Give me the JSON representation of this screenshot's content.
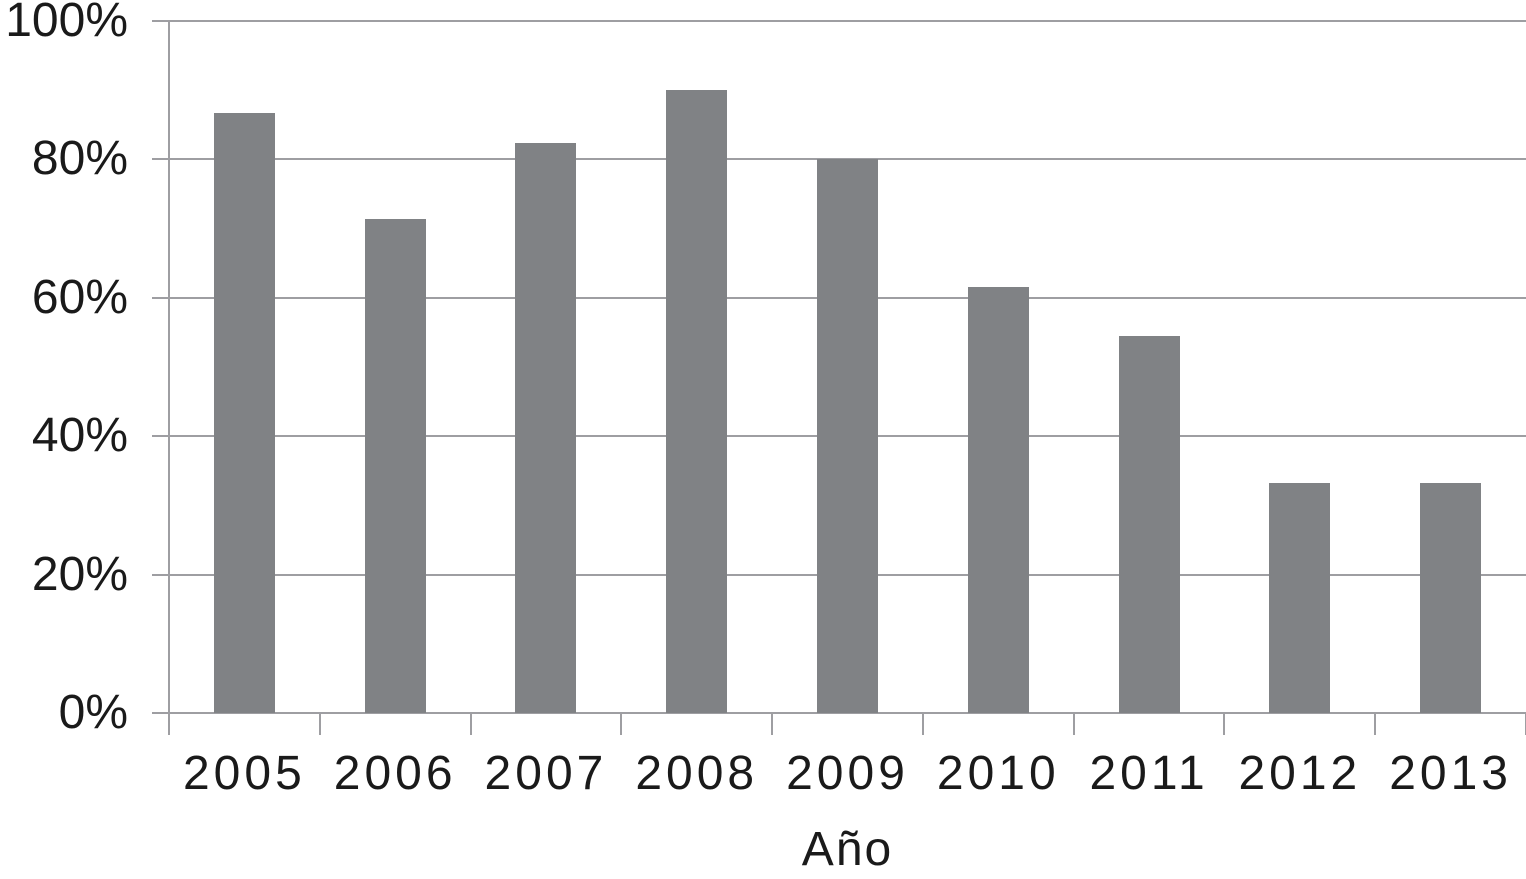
{
  "chart_data": {
    "type": "bar",
    "title": "",
    "xlabel": "Año",
    "ylabel": "",
    "categories": [
      "2005",
      "2006",
      "2007",
      "2008",
      "2009",
      "2010",
      "2011",
      "2012",
      "2013"
    ],
    "values": [
      86.7,
      71.4,
      82.4,
      90.0,
      80.0,
      61.5,
      54.5,
      33.3,
      33.3
    ],
    "series_unit": "%",
    "yticks": [
      {
        "value": 0,
        "label": "0%"
      },
      {
        "value": 20,
        "label": "20%"
      },
      {
        "value": 40,
        "label": "40%"
      },
      {
        "value": 60,
        "label": "60%"
      },
      {
        "value": 80,
        "label": "80%"
      },
      {
        "value": 100,
        "label": "100%"
      }
    ],
    "ylim": [
      0,
      100
    ],
    "grid": true,
    "legend": false,
    "colors": {
      "bar": "#808285",
      "line": "#9e9ea2",
      "text": "#1a1a1a",
      "background": "#ffffff"
    }
  }
}
